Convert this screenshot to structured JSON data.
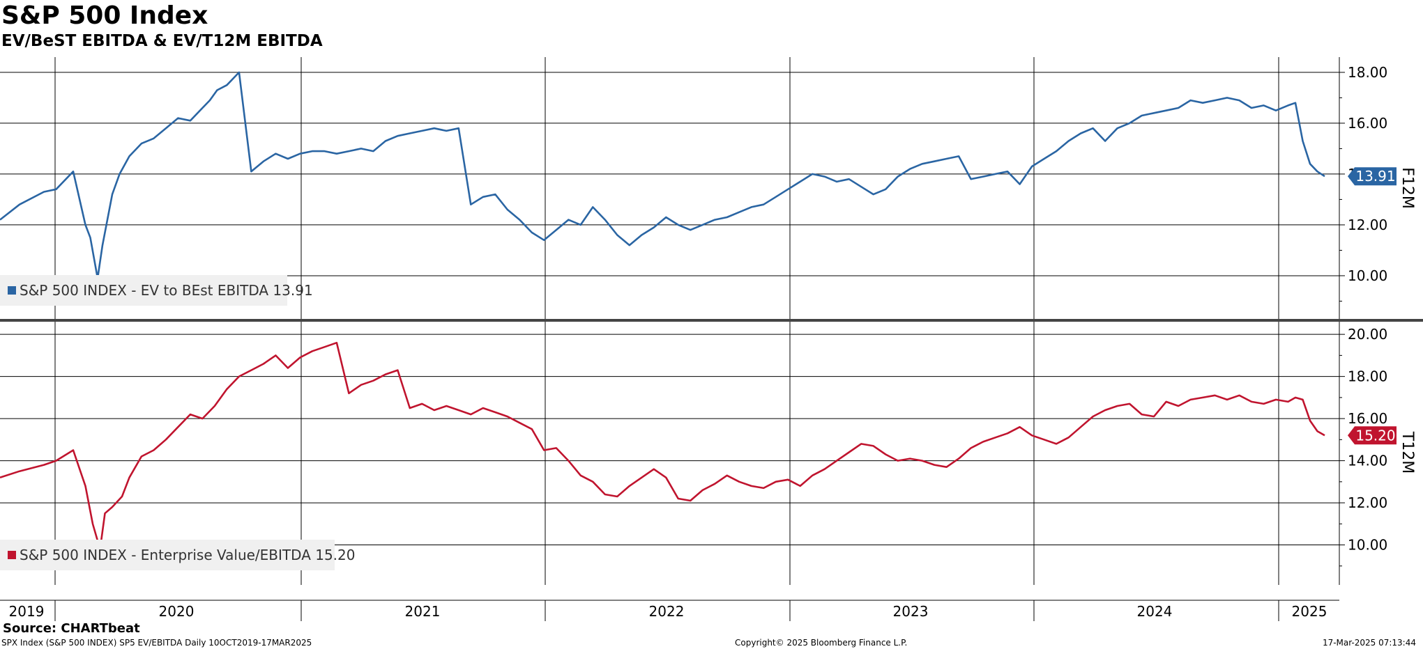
{
  "title": "S&P 500 Index",
  "subtitle": "EV/BeST EBITDA & EV/T12M EBITDA",
  "source": "Source: CHARTbeat",
  "footer": {
    "left": "SPX Index (S&P 500 INDEX) SP5 EV/EBITDA  Daily 10OCT2019-17MAR2025",
    "center": "Copyright© 2025 Bloomberg Finance L.P.",
    "right": "17-Mar-2025 07:13:44"
  },
  "colors": {
    "series_top": "#2a65a3",
    "series_bottom": "#c0142e",
    "grid": "#000000",
    "separator": "#444444",
    "legend_bg": "#f0f0f0"
  },
  "chart_data": [
    {
      "type": "line",
      "panel": "top",
      "right_axis_label": "F12M",
      "ylim": [
        8.3,
        18.6
      ],
      "yticks": [
        10,
        12,
        14,
        16,
        18
      ],
      "ytick_labels": [
        "10.00",
        "12.00",
        "14.00",
        "16.00",
        "18.00"
      ],
      "grid": true,
      "x_ticks": [
        "2019",
        "2020",
        "2021",
        "2022",
        "2023",
        "2024",
        "2025"
      ],
      "xlim": [
        2019.77,
        2025.26
      ],
      "series": [
        {
          "name": "S&P 500 INDEX - EV to BEst EBITDA 13.91",
          "last_value": "13.91",
          "x": [
            2019.77,
            2019.85,
            2019.95,
            2020.0,
            2020.07,
            2020.12,
            2020.14,
            2020.17,
            2020.19,
            2020.21,
            2020.23,
            2020.26,
            2020.3,
            2020.35,
            2020.4,
            2020.45,
            2020.5,
            2020.55,
            2020.6,
            2020.63,
            2020.66,
            2020.7,
            2020.75,
            2020.8,
            2020.85,
            2020.9,
            2020.95,
            2021.0,
            2021.05,
            2021.1,
            2021.15,
            2021.2,
            2021.25,
            2021.3,
            2021.35,
            2021.4,
            2021.45,
            2021.5,
            2021.55,
            2021.6,
            2021.65,
            2021.7,
            2021.75,
            2021.8,
            2021.85,
            2021.9,
            2021.95,
            2022.0,
            2022.05,
            2022.1,
            2022.15,
            2022.2,
            2022.25,
            2022.3,
            2022.35,
            2022.4,
            2022.45,
            2022.5,
            2022.55,
            2022.6,
            2022.65,
            2022.7,
            2022.75,
            2022.8,
            2022.85,
            2022.9,
            2022.95,
            2023.0,
            2023.05,
            2023.1,
            2023.15,
            2023.2,
            2023.25,
            2023.3,
            2023.35,
            2023.4,
            2023.45,
            2023.5,
            2023.55,
            2023.6,
            2023.65,
            2023.7,
            2023.75,
            2023.8,
            2023.85,
            2023.9,
            2023.95,
            2024.0,
            2024.05,
            2024.1,
            2024.15,
            2024.2,
            2024.25,
            2024.3,
            2024.35,
            2024.4,
            2024.45,
            2024.5,
            2024.55,
            2024.6,
            2024.65,
            2024.7,
            2024.75,
            2024.8,
            2024.85,
            2024.9,
            2024.95,
            2025.0,
            2025.05,
            2025.08,
            2025.11,
            2025.14,
            2025.17,
            2025.2
          ],
          "y": [
            12.2,
            12.8,
            13.3,
            13.4,
            14.1,
            12.0,
            11.5,
            9.9,
            11.2,
            12.2,
            13.2,
            14.0,
            14.7,
            15.2,
            15.4,
            15.8,
            16.2,
            16.1,
            16.6,
            16.9,
            17.3,
            17.5,
            18.0,
            14.1,
            14.5,
            14.8,
            14.6,
            14.8,
            14.9,
            14.9,
            14.8,
            14.9,
            15.0,
            14.9,
            15.3,
            15.5,
            15.6,
            15.7,
            15.8,
            15.7,
            15.8,
            12.8,
            13.1,
            13.2,
            12.6,
            12.2,
            11.7,
            11.4,
            11.8,
            12.2,
            12.0,
            12.7,
            12.2,
            11.6,
            11.2,
            11.6,
            11.9,
            12.3,
            12.0,
            11.8,
            12.0,
            12.2,
            12.3,
            12.5,
            12.7,
            12.8,
            13.1,
            13.4,
            13.7,
            14.0,
            13.9,
            13.7,
            13.8,
            13.5,
            13.2,
            13.4,
            13.9,
            14.2,
            14.4,
            14.5,
            14.6,
            14.7,
            13.8,
            13.9,
            14.0,
            14.1,
            13.6,
            14.3,
            14.6,
            14.9,
            15.3,
            15.6,
            15.8,
            15.3,
            15.8,
            16.0,
            16.3,
            16.4,
            16.5,
            16.6,
            16.9,
            16.8,
            16.9,
            17.0,
            16.9,
            16.6,
            16.7,
            16.5,
            16.7,
            16.8,
            15.3,
            14.4,
            14.1,
            13.91
          ]
        }
      ]
    },
    {
      "type": "line",
      "panel": "bottom",
      "right_axis_label": "T12M",
      "ylim": [
        8.1,
        20.6
      ],
      "yticks": [
        10,
        12,
        14,
        16,
        18,
        20
      ],
      "ytick_labels": [
        "10.00",
        "12.00",
        "14.00",
        "16.00",
        "18.00",
        "20.00"
      ],
      "grid": true,
      "x_ticks": [
        "2019",
        "2020",
        "2021",
        "2022",
        "2023",
        "2024",
        "2025"
      ],
      "xlim": [
        2019.77,
        2025.26
      ],
      "series": [
        {
          "name": "S&P 500 INDEX - Enterprise Value/EBITDA 15.20",
          "last_value": "15.20",
          "x": [
            2019.77,
            2019.85,
            2019.95,
            2020.0,
            2020.07,
            2020.12,
            2020.15,
            2020.18,
            2020.2,
            2020.23,
            2020.27,
            2020.3,
            2020.35,
            2020.4,
            2020.45,
            2020.5,
            2020.55,
            2020.6,
            2020.65,
            2020.7,
            2020.75,
            2020.8,
            2020.85,
            2020.9,
            2020.95,
            2021.0,
            2021.05,
            2021.1,
            2021.15,
            2021.2,
            2021.25,
            2021.3,
            2021.35,
            2021.4,
            2021.45,
            2021.5,
            2021.55,
            2021.6,
            2021.65,
            2021.7,
            2021.75,
            2021.8,
            2021.85,
            2021.9,
            2021.95,
            2022.0,
            2022.05,
            2022.1,
            2022.15,
            2022.2,
            2022.25,
            2022.3,
            2022.35,
            2022.4,
            2022.45,
            2022.5,
            2022.55,
            2022.6,
            2022.65,
            2022.7,
            2022.75,
            2022.8,
            2022.85,
            2022.9,
            2022.95,
            2023.0,
            2023.05,
            2023.1,
            2023.15,
            2023.2,
            2023.25,
            2023.3,
            2023.35,
            2023.4,
            2023.45,
            2023.5,
            2023.55,
            2023.6,
            2023.65,
            2023.7,
            2023.75,
            2023.8,
            2023.85,
            2023.9,
            2023.95,
            2024.0,
            2024.05,
            2024.1,
            2024.15,
            2024.2,
            2024.25,
            2024.3,
            2024.35,
            2024.4,
            2024.45,
            2024.5,
            2024.55,
            2024.6,
            2024.65,
            2024.7,
            2024.75,
            2024.8,
            2024.85,
            2024.9,
            2024.95,
            2025.0,
            2025.05,
            2025.08,
            2025.11,
            2025.14,
            2025.17,
            2025.2
          ],
          "y": [
            13.2,
            13.5,
            13.8,
            14.0,
            14.5,
            12.8,
            11.0,
            9.8,
            11.5,
            11.8,
            12.3,
            13.2,
            14.2,
            14.5,
            15.0,
            15.6,
            16.2,
            16.0,
            16.6,
            17.4,
            18.0,
            18.3,
            18.6,
            19.0,
            18.4,
            18.9,
            19.2,
            19.4,
            19.6,
            17.2,
            17.6,
            17.8,
            18.1,
            18.3,
            16.5,
            16.7,
            16.4,
            16.6,
            16.4,
            16.2,
            16.5,
            16.3,
            16.1,
            15.8,
            15.5,
            14.5,
            14.6,
            14.0,
            13.3,
            13.0,
            12.4,
            12.3,
            12.8,
            13.2,
            13.6,
            13.2,
            12.2,
            12.1,
            12.6,
            12.9,
            13.3,
            13.0,
            12.8,
            12.7,
            13.0,
            13.1,
            12.8,
            13.3,
            13.6,
            14.0,
            14.4,
            14.8,
            14.7,
            14.3,
            14.0,
            14.1,
            14.0,
            13.8,
            13.7,
            14.1,
            14.6,
            14.9,
            15.1,
            15.3,
            15.6,
            15.2,
            15.0,
            14.8,
            15.1,
            15.6,
            16.1,
            16.4,
            16.6,
            16.7,
            16.2,
            16.1,
            16.8,
            16.6,
            16.9,
            17.0,
            17.1,
            16.9,
            17.1,
            16.8,
            16.7,
            16.9,
            16.8,
            17.0,
            16.9,
            15.9,
            15.4,
            15.2
          ]
        }
      ]
    }
  ]
}
